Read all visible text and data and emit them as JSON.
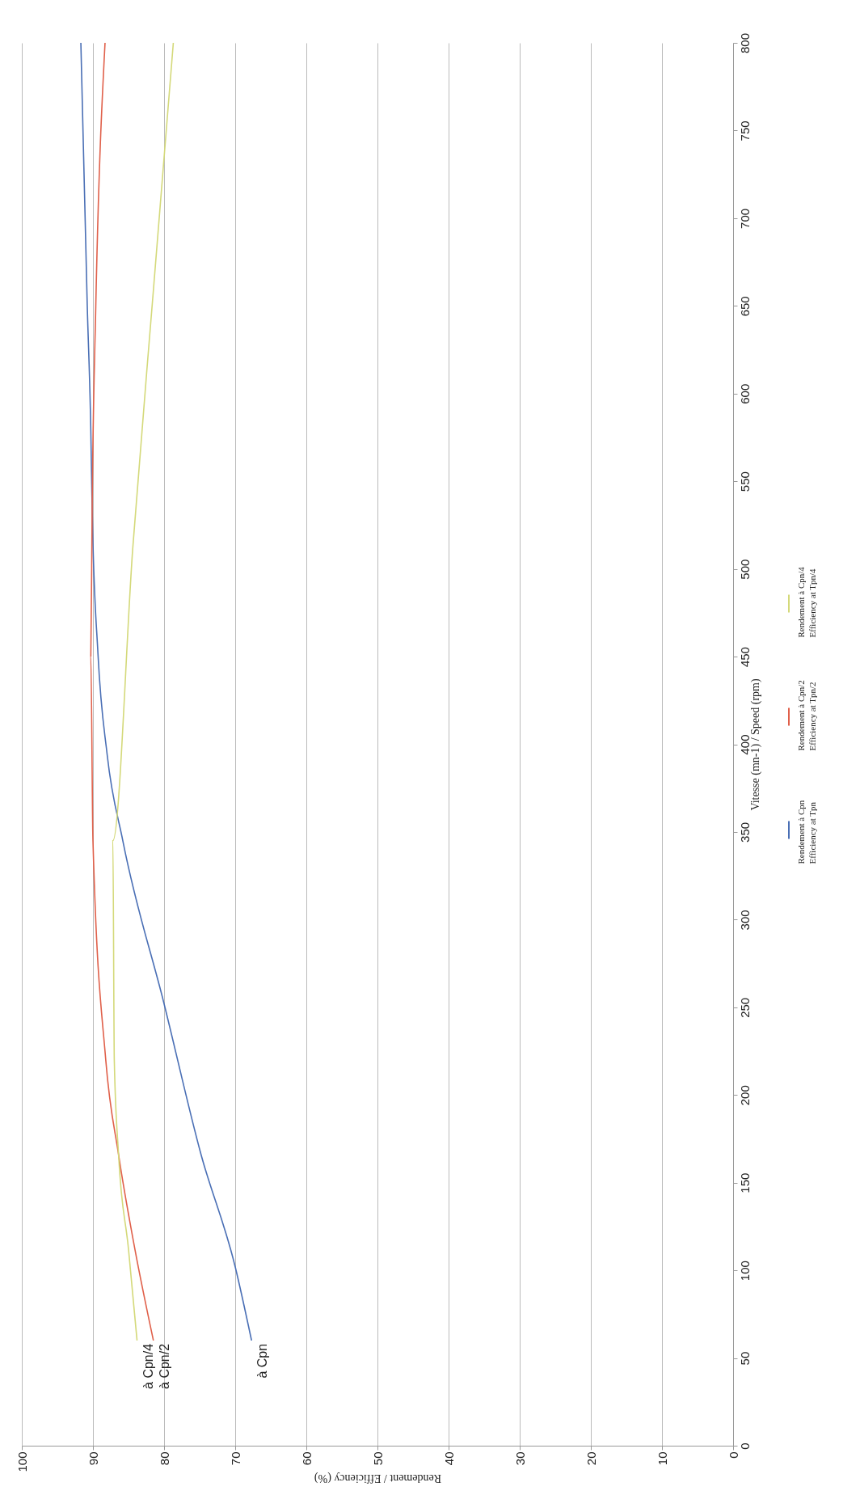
{
  "chart_data": {
    "type": "line",
    "xlabel": "Rendement / Efficiency (%)",
    "ylabel": "Vitesse (mn-1) / Speed (rpm)",
    "xlim": [
      100,
      0
    ],
    "xticks": [
      100,
      90,
      80,
      70,
      60,
      50,
      40,
      30,
      20,
      10,
      0
    ],
    "ylim": [
      0,
      800
    ],
    "yticks": [
      0,
      50,
      100,
      150,
      200,
      250,
      300,
      350,
      400,
      450,
      500,
      550,
      600,
      650,
      700,
      750,
      800
    ],
    "grid": "x",
    "legend": "right",
    "line_style": "solid",
    "series": [
      {
        "name": "Rendement à Cpn\nEfficiency at Tpn",
        "color": "#4a6fb5",
        "x": [
          67.7,
          70,
          74.8,
          80,
          85.8,
          88,
          89.3,
          90.1,
          90.3,
          90.8,
          91.7
        ],
        "values": [
          60,
          102,
          166,
          252,
          345,
          394,
          452,
          532,
          579,
          650,
          800
        ]
      },
      {
        "name": "Rendement à Cpn/2\nEfficiency at Tpn/2",
        "color": "#e0604a",
        "x": [
          81.5,
          84.1,
          86.4,
          88.2,
          90,
          90.3,
          90.1,
          89.6,
          88.3
        ],
        "values": [
          60,
          112,
          166,
          220,
          345,
          450,
          540,
          650,
          800
        ]
      },
      {
        "name": "Rendement à Cpn/4\nEfficiency at Tpn/4",
        "color": "#d4d97a",
        "x": [
          83.8,
          85,
          86.4,
          87,
          87.2,
          84.4,
          81.5,
          78.7
        ],
        "values": [
          60,
          112,
          166,
          220,
          345,
          512,
          659,
          800
        ]
      }
    ],
    "annotations": [
      {
        "text": "à Cpn/4",
        "x": 83.8,
        "y": 60
      },
      {
        "text": "à Cpn/2",
        "x": 81.5,
        "y": 60
      },
      {
        "text": "à Cpn",
        "x": 67.7,
        "y": 60
      }
    ]
  }
}
